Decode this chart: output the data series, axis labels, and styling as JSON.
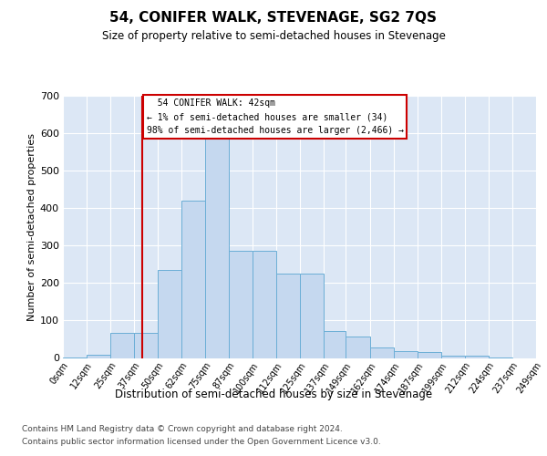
{
  "title": "54, CONIFER WALK, STEVENAGE, SG2 7QS",
  "subtitle": "Size of property relative to semi-detached houses in Stevenage",
  "xlabel": "Distribution of semi-detached houses by size in Stevenage",
  "ylabel": "Number of semi-detached properties",
  "property_label": "54 CONIFER WALK: 42sqm",
  "pct_smaller": 1,
  "count_smaller": 34,
  "pct_larger": 98,
  "count_larger": 2466,
  "bin_edges": [
    0,
    12.5,
    25,
    37.5,
    50,
    62.5,
    75,
    87.5,
    100,
    112.5,
    125,
    137.5,
    149,
    162,
    174.5,
    187,
    199.5,
    212,
    224.5,
    237,
    249.5
  ],
  "bin_labels": [
    "0sqm",
    "12sqm",
    "25sqm",
    "37sqm",
    "50sqm",
    "62sqm",
    "75sqm",
    "87sqm",
    "100sqm",
    "112sqm",
    "125sqm",
    "137sqm",
    "149sqm",
    "162sqm",
    "174sqm",
    "187sqm",
    "199sqm",
    "212sqm",
    "224sqm",
    "237sqm",
    "249sqm"
  ],
  "bar_heights": [
    2,
    8,
    68,
    68,
    235,
    420,
    585,
    285,
    285,
    225,
    225,
    72,
    58,
    28,
    18,
    15,
    6,
    5,
    2,
    0
  ],
  "bar_color": "#c5d8ef",
  "bar_edge_color": "#6baed6",
  "vline_x": 42,
  "vline_color": "#cc0000",
  "ylim": [
    0,
    700
  ],
  "yticks": [
    0,
    100,
    200,
    300,
    400,
    500,
    600,
    700
  ],
  "plot_bg": "#dce7f5",
  "fig_bg": "#ffffff",
  "footer1": "Contains HM Land Registry data © Crown copyright and database right 2024.",
  "footer2": "Contains public sector information licensed under the Open Government Licence v3.0."
}
